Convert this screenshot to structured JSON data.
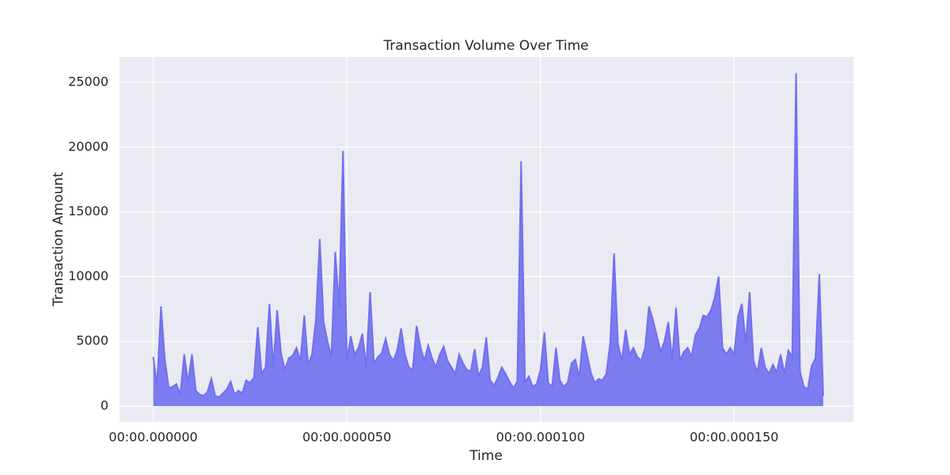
{
  "chart_data": {
    "type": "area",
    "title": "Transaction Volume Over Time",
    "xlabel": "Time",
    "ylabel": "Transaction Amount",
    "color": "#7070f0",
    "grid": true,
    "x": [
      0,
      1,
      2,
      3,
      4,
      5,
      6,
      7,
      8,
      9,
      10,
      11,
      12,
      13,
      14,
      15,
      16,
      17,
      18,
      19,
      20,
      21,
      22,
      23,
      24,
      25,
      26,
      27,
      28,
      29,
      30,
      31,
      32,
      33,
      34,
      35,
      36,
      37,
      38,
      39,
      40,
      41,
      42,
      43,
      44,
      45,
      46,
      47,
      48,
      49,
      50,
      51,
      52,
      53,
      54,
      55,
      56,
      57,
      58,
      59,
      60,
      61,
      62,
      63,
      64,
      65,
      66,
      67,
      68,
      69,
      70,
      71,
      72,
      73,
      74,
      75,
      76,
      77,
      78,
      79,
      80,
      81,
      82,
      83,
      84,
      85,
      86,
      87,
      88,
      89,
      90,
      91,
      92,
      93,
      94,
      95,
      96,
      97,
      98,
      99,
      100,
      101,
      102,
      103,
      104,
      105,
      106,
      107,
      108,
      109,
      110,
      111,
      112,
      113,
      114,
      115,
      116,
      117,
      118,
      119,
      120,
      121,
      122,
      123,
      124,
      125,
      126,
      127,
      128,
      129,
      130,
      131,
      132,
      133,
      134,
      135,
      136,
      137,
      138,
      139,
      140,
      141,
      142,
      143,
      144,
      145,
      146,
      147,
      148,
      149,
      150,
      151,
      152,
      153,
      154,
      155,
      156,
      157,
      158,
      159,
      160,
      161,
      162,
      163,
      164,
      165,
      166,
      167,
      168,
      169,
      170,
      171,
      172,
      173
    ],
    "values": [
      3800,
      1600,
      7700,
      3600,
      1400,
      1500,
      1700,
      900,
      4000,
      1800,
      4000,
      1200,
      900,
      800,
      1100,
      2100,
      800,
      700,
      1000,
      1300,
      1900,
      900,
      1200,
      1000,
      2000,
      1800,
      2200,
      6100,
      2500,
      3000,
      7900,
      3000,
      7400,
      4100,
      2800,
      3700,
      3900,
      4500,
      3500,
      7000,
      3200,
      4000,
      6700,
      12900,
      6500,
      5000,
      3800,
      11900,
      7600,
      19700,
      3500,
      5400,
      4000,
      4500,
      5600,
      3000,
      8800,
      3300,
      3800,
      4100,
      5200,
      4000,
      3500,
      4300,
      6000,
      4000,
      3000,
      2800,
      6200,
      4600,
      3500,
      4700,
      3700,
      3000,
      4000,
      4600,
      3500,
      3000,
      2500,
      4000,
      3300,
      2800,
      2700,
      4400,
      2300,
      3000,
      5300,
      2000,
      1600,
      2200,
      3000,
      2500,
      1900,
      1400,
      1900,
      18900,
      1800,
      2300,
      1500,
      1700,
      2800,
      5700,
      1800,
      1500,
      4500,
      2000,
      1500,
      1800,
      3300,
      3600,
      2200,
      5400,
      4000,
      2600,
      1800,
      2100,
      2000,
      2500,
      4900,
      11800,
      4800,
      3500,
      5900,
      4000,
      4500,
      3800,
      3500,
      4500,
      7700,
      6700,
      5500,
      4200,
      5000,
      6500,
      3500,
      7600,
      3500,
      4200,
      4500,
      3800,
      5500,
      6000,
      7000,
      6900,
      7400,
      8400,
      10000,
      4500,
      4000,
      4500,
      4000,
      6900,
      7900,
      4800,
      8800,
      3500,
      2600,
      4500,
      3000,
      2500,
      3200,
      2600,
      4000,
      2500,
      4300,
      3800,
      25700,
      2700,
      1500,
      1300,
      3100,
      3700,
      10200,
      800
    ],
    "xlim": [
      -8.7,
      180.8
    ],
    "ylim": [
      -1222,
      26955
    ],
    "xticks": [
      {
        "value": 0,
        "label": "00:00.000000"
      },
      {
        "value": 50,
        "label": "00:00.000050"
      },
      {
        "value": 100,
        "label": "00:00.000100"
      },
      {
        "value": 150,
        "label": "00:00.000150"
      }
    ],
    "yticks": [
      0,
      5000,
      10000,
      15000,
      20000,
      25000
    ]
  }
}
